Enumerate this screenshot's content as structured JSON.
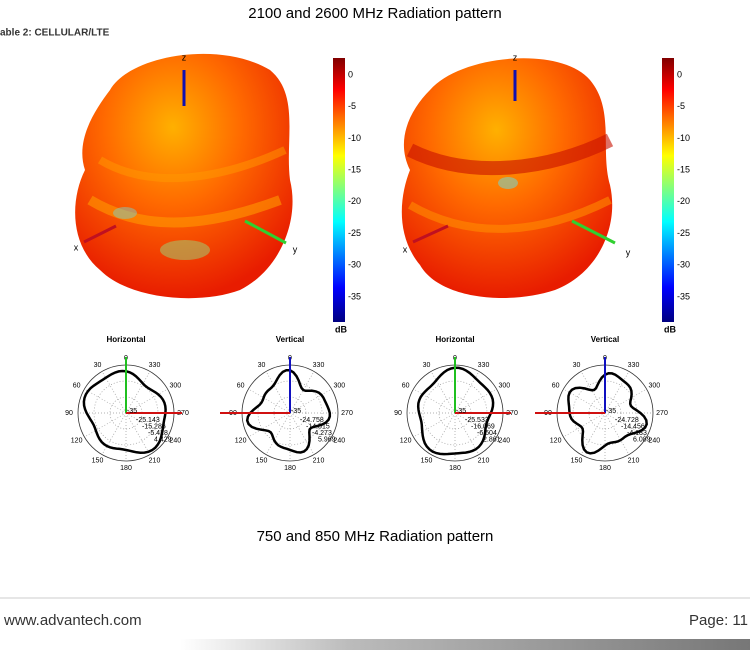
{
  "header": {
    "title": "2100 and 2600 MHz Radiation pattern",
    "table_label": "able 2: CELLULAR/LTE"
  },
  "patterns_3d": [
    {
      "axis_labels": [
        "z",
        "x",
        "y"
      ],
      "colorbar": {
        "ticks": [
          "0",
          "-5",
          "-10",
          "-15",
          "-20",
          "-25",
          "-30",
          "-35"
        ],
        "unit": "dB"
      }
    },
    {
      "axis_labels": [
        "z",
        "x",
        "y"
      ],
      "colorbar": {
        "ticks": [
          "0",
          "-5",
          "-10",
          "-15",
          "-20",
          "-25",
          "-30",
          "-35"
        ],
        "unit": "dB"
      }
    }
  ],
  "polar_plots": [
    {
      "title": "Horizontal",
      "angle_labels": [
        "0",
        "30",
        "60",
        "90",
        "120",
        "150",
        "180",
        "210",
        "240",
        "270",
        "300",
        "330"
      ],
      "center_label": "-35",
      "readouts": [
        "-25.143",
        "-15.286",
        "-5.428",
        "4.429"
      ]
    },
    {
      "title": "Vertical",
      "angle_labels": [
        "0",
        "30",
        "60",
        "90",
        "120",
        "150",
        "180",
        "210",
        "240",
        "270",
        "300",
        "330"
      ],
      "center_label": "-35",
      "readouts": [
        "-24.758",
        "-14.515",
        "-4.273",
        "5.969"
      ]
    },
    {
      "title": "Horizontal",
      "angle_labels": [
        "0",
        "30",
        "60",
        "90",
        "120",
        "150",
        "180",
        "210",
        "240",
        "270",
        "300",
        "330"
      ],
      "center_label": "-35",
      "readouts": [
        "-25.533",
        "-16.069",
        "-6.604",
        "2.861"
      ]
    },
    {
      "title": "Vertical",
      "angle_labels": [
        "0",
        "30",
        "60",
        "90",
        "120",
        "150",
        "180",
        "210",
        "240",
        "270",
        "300",
        "330"
      ],
      "center_label": "-35",
      "readouts": [
        "-24.728",
        "-14.456",
        "-4.183",
        "6.089"
      ]
    }
  ],
  "section_title": "750 and 850 MHz Radiation pattern",
  "footer": {
    "url": "www.advantech.com",
    "page": "Page: 11"
  }
}
